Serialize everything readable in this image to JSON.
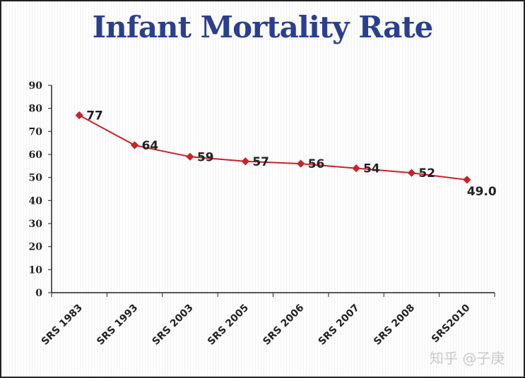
{
  "chart_data": {
    "type": "line",
    "title": "Infant Mortality Rate",
    "categories": [
      "SRS 1983",
      "SRS 1993",
      "SRS 2003",
      "SRS 2005",
      "SRS 2006",
      "SRS 2007",
      "SRS 2008",
      "SRS2010"
    ],
    "series": [
      {
        "values": [
          77,
          64,
          59,
          57,
          56,
          54,
          52,
          49.0
        ],
        "color": "#c8222a"
      }
    ],
    "data_labels": [
      "77",
      "64",
      "59",
      "57",
      "56",
      "54",
      "52",
      "49.0"
    ],
    "ylim": [
      0,
      90
    ],
    "yticks": [
      0,
      10,
      20,
      30,
      40,
      50,
      60,
      70,
      80,
      90
    ],
    "xlabel": "",
    "ylabel": "",
    "grid": false,
    "legend": "none"
  },
  "watermark": "知乎 @子庚"
}
